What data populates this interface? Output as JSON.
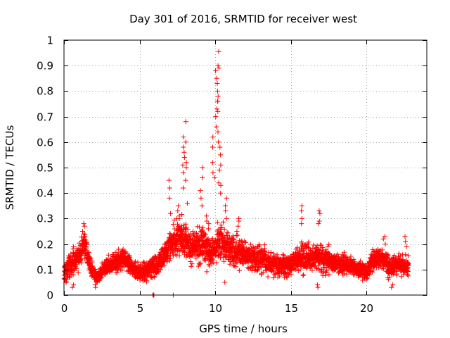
{
  "chart_data": {
    "type": "scatter",
    "title": "Day 301 of 2016, SRMTID for receiver west",
    "xlabel": "GPS time / hours",
    "ylabel": "SRMTID / TECUs",
    "xlim": [
      0,
      24
    ],
    "ylim": [
      0,
      1
    ],
    "xticks": [
      0,
      5,
      10,
      15,
      20
    ],
    "yticks": [
      0,
      0.1,
      0.2,
      0.3,
      0.4,
      0.5,
      0.6,
      0.7,
      0.8,
      0.9,
      1
    ],
    "grid": true,
    "marker": "+",
    "marker_color": "#ff0000",
    "series": [
      {
        "name": "SRMTID",
        "data_extent_hours": [
          0,
          22.8
        ],
        "profile": [
          [
            0.0,
            0.1,
            0.04
          ],
          [
            0.5,
            0.12,
            0.05
          ],
          [
            1.0,
            0.16,
            0.05
          ],
          [
            1.4,
            0.2,
            0.05
          ],
          [
            1.8,
            0.1,
            0.03
          ],
          [
            2.2,
            0.07,
            0.02
          ],
          [
            2.8,
            0.11,
            0.03
          ],
          [
            3.5,
            0.13,
            0.04
          ],
          [
            4.0,
            0.15,
            0.04
          ],
          [
            4.6,
            0.1,
            0.03
          ],
          [
            5.2,
            0.09,
            0.03
          ],
          [
            5.8,
            0.11,
            0.04
          ],
          [
            6.5,
            0.14,
            0.05
          ],
          [
            7.2,
            0.21,
            0.06
          ],
          [
            7.8,
            0.24,
            0.07
          ],
          [
            8.5,
            0.19,
            0.06
          ],
          [
            9.2,
            0.2,
            0.07
          ],
          [
            9.8,
            0.16,
            0.05
          ],
          [
            10.3,
            0.21,
            0.07
          ],
          [
            11.0,
            0.18,
            0.06
          ],
          [
            12.0,
            0.15,
            0.05
          ],
          [
            13.0,
            0.14,
            0.05
          ],
          [
            14.0,
            0.12,
            0.04
          ],
          [
            15.0,
            0.12,
            0.04
          ],
          [
            15.8,
            0.15,
            0.05
          ],
          [
            16.5,
            0.14,
            0.05
          ],
          [
            17.0,
            0.14,
            0.05
          ],
          [
            17.8,
            0.13,
            0.04
          ],
          [
            18.5,
            0.12,
            0.04
          ],
          [
            19.5,
            0.1,
            0.03
          ],
          [
            20.0,
            0.09,
            0.03
          ],
          [
            20.5,
            0.14,
            0.04
          ],
          [
            21.0,
            0.15,
            0.04
          ],
          [
            21.5,
            0.11,
            0.04
          ],
          [
            22.0,
            0.12,
            0.04
          ],
          [
            22.8,
            0.11,
            0.04
          ]
        ],
        "points_per_hour": 150,
        "spikes": [
          {
            "x": 1.3,
            "values": [
              0.27,
              0.25,
              0.23,
              0.28,
              0.24
            ]
          },
          {
            "x": 7.0,
            "values": [
              0.45,
              0.42,
              0.38,
              0.32
            ]
          },
          {
            "x": 7.6,
            "values": [
              0.35,
              0.33,
              0.3,
              0.31
            ]
          },
          {
            "x": 7.9,
            "values": [
              0.62,
              0.58,
              0.56,
              0.54,
              0.51,
              0.48,
              0.42
            ]
          },
          {
            "x": 8.1,
            "values": [
              0.68,
              0.6,
              0.52,
              0.5,
              0.45,
              0.36
            ]
          },
          {
            "x": 9.1,
            "values": [
              0.5,
              0.46,
              0.41,
              0.38,
              0.35
            ]
          },
          {
            "x": 9.5,
            "values": [
              0.31,
              0.28,
              0.26,
              0.29
            ]
          },
          {
            "x": 9.9,
            "values": [
              0.62,
              0.58,
              0.52,
              0.48,
              0.46
            ]
          },
          {
            "x": 10.1,
            "values": [
              0.88,
              0.85,
              0.8,
              0.76,
              0.73,
              0.7,
              0.66
            ]
          },
          {
            "x": 10.2,
            "values": [
              0.955,
              0.9,
              0.89,
              0.83,
              0.78,
              0.76,
              0.72,
              0.64,
              0.6
            ]
          },
          {
            "x": 10.3,
            "values": [
              0.58,
              0.55,
              0.51,
              0.49,
              0.44,
              0.43,
              0.4
            ]
          },
          {
            "x": 10.7,
            "values": [
              0.38,
              0.35,
              0.33,
              0.3
            ]
          },
          {
            "x": 11.5,
            "values": [
              0.29,
              0.27,
              0.25,
              0.3
            ]
          },
          {
            "x": 15.7,
            "values": [
              0.35,
              0.33,
              0.3,
              0.28
            ]
          },
          {
            "x": 16.9,
            "values": [
              0.33,
              0.32,
              0.29,
              0.28
            ]
          },
          {
            "x": 21.2,
            "values": [
              0.23,
              0.22,
              0.2
            ]
          },
          {
            "x": 22.6,
            "values": [
              0.23,
              0.21,
              0.19
            ]
          }
        ],
        "lows": [
          {
            "x": 5.9,
            "values": [
              0.0,
              0.0,
              0.0
            ]
          },
          {
            "x": 7.2,
            "values": [
              0.0
            ]
          },
          {
            "x": 0.6,
            "values": [
              0.03,
              0.04
            ]
          },
          {
            "x": 2.1,
            "values": [
              0.03,
              0.04
            ]
          },
          {
            "x": 10.6,
            "values": [
              0.05
            ]
          },
          {
            "x": 16.8,
            "values": [
              0.03,
              0.04
            ]
          },
          {
            "x": 21.7,
            "values": [
              0.03,
              0.04
            ]
          }
        ]
      }
    ]
  }
}
